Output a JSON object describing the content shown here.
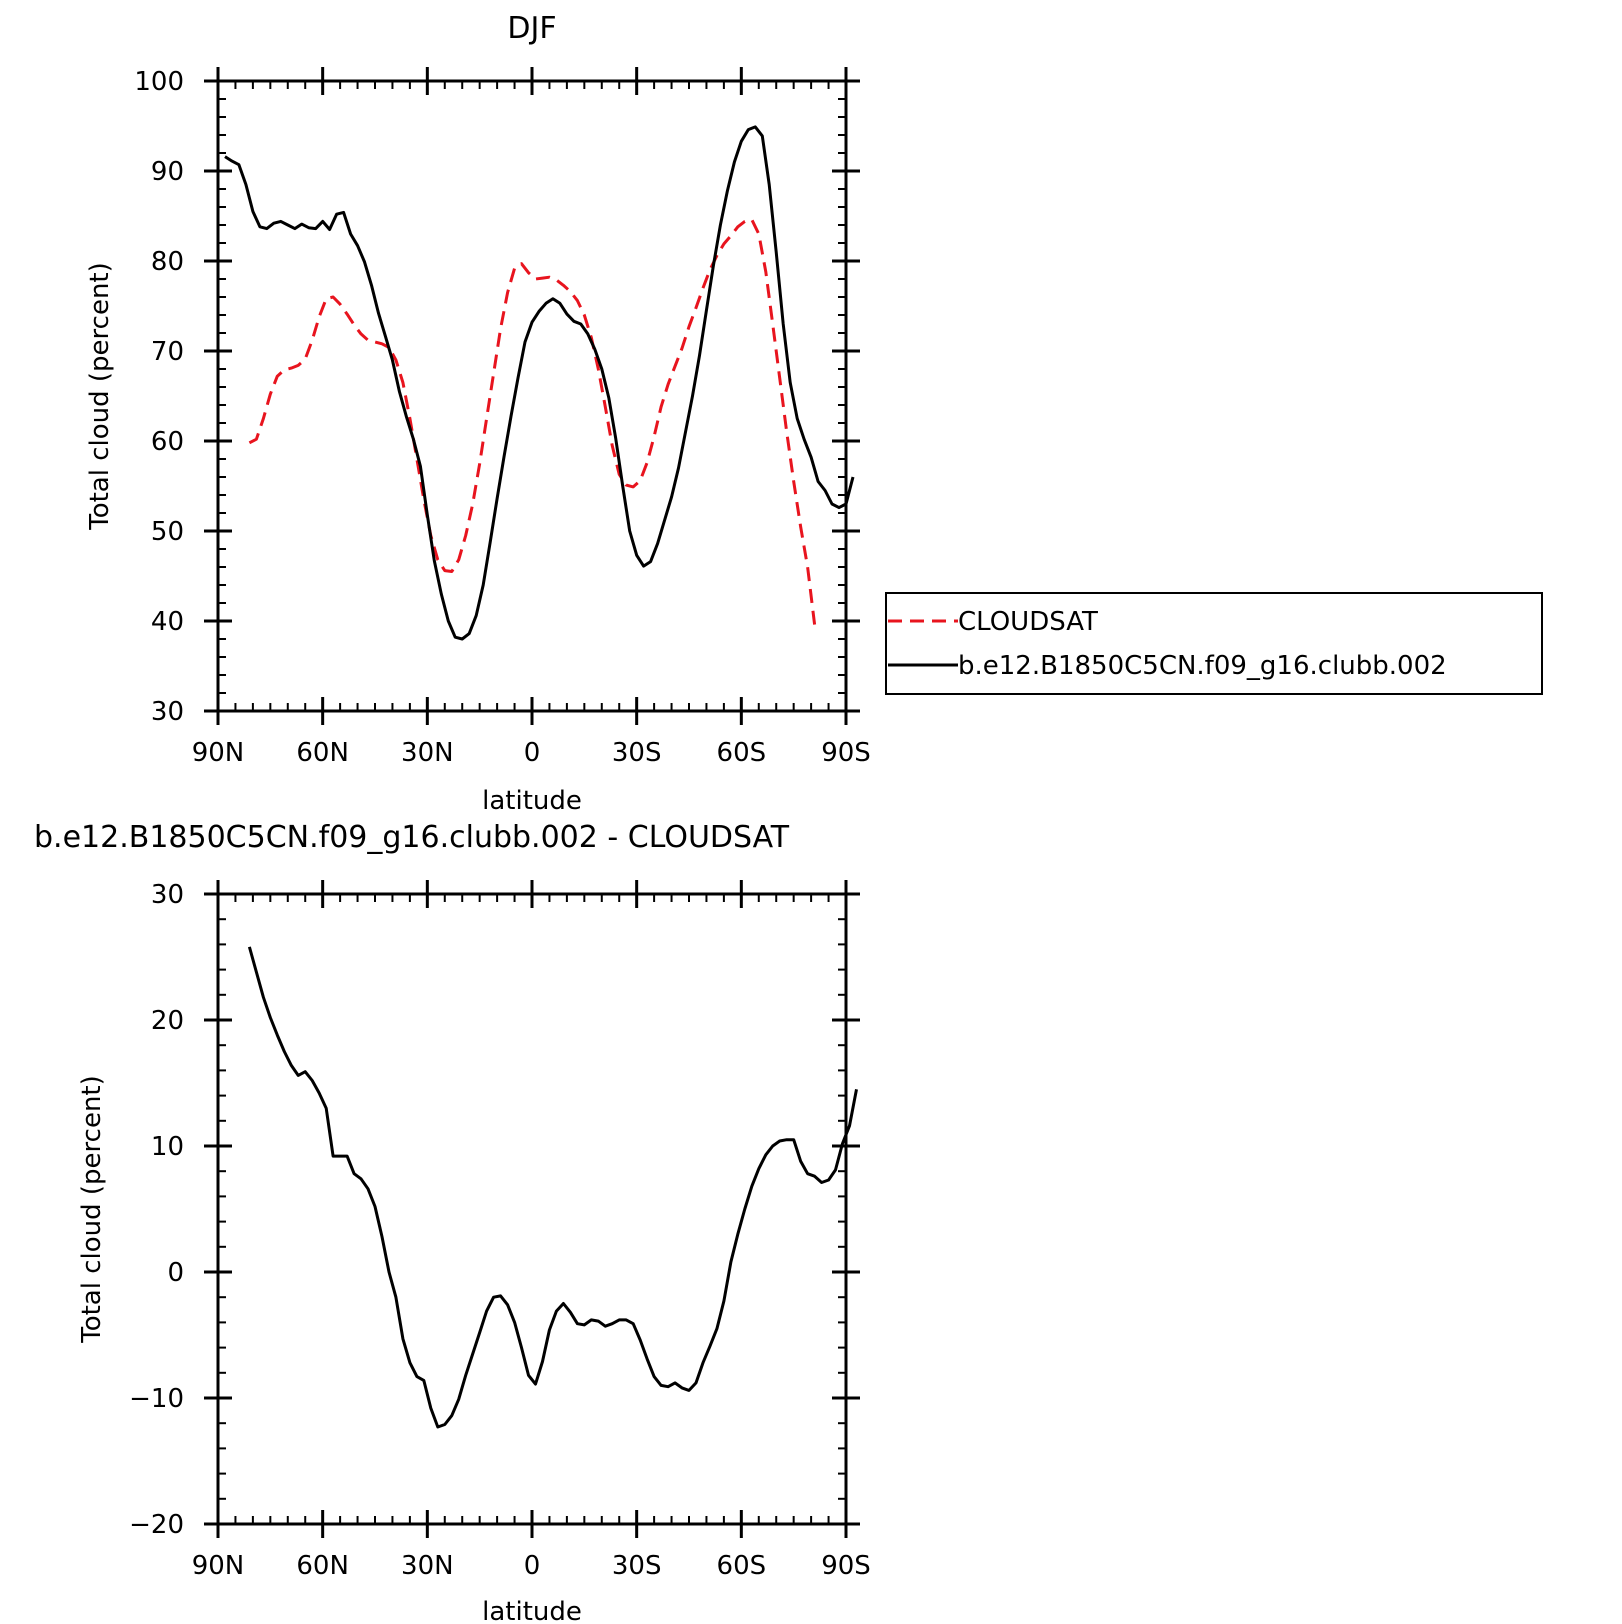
{
  "chart_data": [
    {
      "type": "line",
      "title": "DJF",
      "xlabel": "latitude",
      "ylabel": "Total cloud (percent)",
      "xlim": [
        90,
        -90
      ],
      "ylim": [
        30,
        100
      ],
      "x_tick_values": [
        90,
        60,
        30,
        0,
        -30,
        -60,
        -90
      ],
      "x_tick_labels": [
        "90N",
        "60N",
        "30N",
        "0",
        "30S",
        "60S",
        "90S"
      ],
      "y_tick_values": [
        30,
        40,
        50,
        60,
        70,
        80,
        90,
        100
      ],
      "y_tick_labels": [
        "30",
        "40",
        "50",
        "60",
        "70",
        "80",
        "90",
        "100"
      ],
      "legend_position": "right",
      "series": [
        {
          "name": "CLOUDSAT",
          "color": "#e8141e",
          "dash": "dashed",
          "points": [
            [
              81,
              59.8
            ],
            [
              79,
              60.2
            ],
            [
              77,
              62.5
            ],
            [
              75,
              65.2
            ],
            [
              73,
              67.2
            ],
            [
              71,
              67.9
            ],
            [
              69,
              68.1
            ],
            [
              67,
              68.4
            ],
            [
              65,
              69.1
            ],
            [
              63,
              71.2
            ],
            [
              61,
              73.8
            ],
            [
              59,
              75.8
            ],
            [
              57,
              76.0
            ],
            [
              55,
              75.2
            ],
            [
              53,
              74.1
            ],
            [
              51,
              72.9
            ],
            [
              49,
              71.9
            ],
            [
              47,
              71.2
            ],
            [
              45,
              71.0
            ],
            [
              43,
              70.8
            ],
            [
              41,
              70.4
            ],
            [
              39,
              69.0
            ],
            [
              37,
              66.5
            ],
            [
              35,
              62.5
            ],
            [
              33,
              58.0
            ],
            [
              31,
              53.5
            ],
            [
              29,
              49.5
            ],
            [
              27,
              46.8
            ],
            [
              25,
              45.6
            ],
            [
              23,
              45.5
            ],
            [
              21,
              46.8
            ],
            [
              19,
              49.5
            ],
            [
              17,
              53.0
            ],
            [
              15,
              57.5
            ],
            [
              13,
              62.5
            ],
            [
              11,
              67.5
            ],
            [
              9,
              72.5
            ],
            [
              7,
              76.5
            ],
            [
              5,
              79.2
            ],
            [
              3,
              79.7
            ],
            [
              1,
              78.7
            ],
            [
              -1,
              78.0
            ],
            [
              -3,
              78.1
            ],
            [
              -5,
              78.2
            ],
            [
              -7,
              77.9
            ],
            [
              -9,
              77.3
            ],
            [
              -11,
              76.6
            ],
            [
              -13,
              75.6
            ],
            [
              -15,
              74.0
            ],
            [
              -17,
              71.5
            ],
            [
              -19,
              68.0
            ],
            [
              -21,
              63.8
            ],
            [
              -23,
              59.5
            ],
            [
              -25,
              56.3
            ],
            [
              -27,
              55.1
            ],
            [
              -29,
              54.9
            ],
            [
              -31,
              55.6
            ],
            [
              -33,
              57.6
            ],
            [
              -35,
              60.5
            ],
            [
              -37,
              63.8
            ],
            [
              -39,
              66.3
            ],
            [
              -41,
              68.3
            ],
            [
              -43,
              70.3
            ],
            [
              -45,
              72.7
            ],
            [
              -47,
              74.8
            ],
            [
              -49,
              77.0
            ],
            [
              -51,
              79.0
            ],
            [
              -53,
              80.6
            ],
            [
              -55,
              81.9
            ],
            [
              -57,
              82.8
            ],
            [
              -59,
              83.8
            ],
            [
              -61,
              84.4
            ],
            [
              -63,
              84.6
            ],
            [
              -65,
              83.0
            ],
            [
              -67,
              78.8
            ],
            [
              -69,
              73.0
            ],
            [
              -71,
              67.0
            ],
            [
              -73,
              61.0
            ],
            [
              -75,
              55.5
            ],
            [
              -77,
              50.5
            ],
            [
              -79,
              46.0
            ],
            [
              -81,
              39.6
            ]
          ]
        },
        {
          "name": "b.e12.B1850C5CN.f09_g16.clubb.002",
          "color": "#000000",
          "dash": "solid",
          "points": [
            [
              88,
              91.6
            ],
            [
              86,
              91.1
            ],
            [
              84,
              90.7
            ],
            [
              82,
              88.5
            ],
            [
              80,
              85.5
            ],
            [
              78,
              83.8
            ],
            [
              76,
              83.6
            ],
            [
              74,
              84.2
            ],
            [
              72,
              84.4
            ],
            [
              70,
              84.0
            ],
            [
              68,
              83.6
            ],
            [
              66,
              84.1
            ],
            [
              64,
              83.7
            ],
            [
              62,
              83.6
            ],
            [
              60,
              84.4
            ],
            [
              58,
              83.5
            ],
            [
              56,
              85.2
            ],
            [
              54,
              85.4
            ],
            [
              52,
              83.0
            ],
            [
              50,
              81.7
            ],
            [
              48,
              79.9
            ],
            [
              46,
              77.3
            ],
            [
              44,
              74.2
            ],
            [
              42,
              71.6
            ],
            [
              40,
              69.0
            ],
            [
              38,
              65.5
            ],
            [
              36,
              62.7
            ],
            [
              34,
              60.2
            ],
            [
              32,
              57.2
            ],
            [
              30,
              51.8
            ],
            [
              28,
              46.7
            ],
            [
              26,
              43.0
            ],
            [
              24,
              40.0
            ],
            [
              22,
              38.2
            ],
            [
              20,
              38.0
            ],
            [
              18,
              38.6
            ],
            [
              16,
              40.6
            ],
            [
              14,
              44.0
            ],
            [
              12,
              48.7
            ],
            [
              10,
              53.6
            ],
            [
              8,
              58.3
            ],
            [
              6,
              62.8
            ],
            [
              4,
              67.0
            ],
            [
              2,
              71.0
            ],
            [
              0,
              73.2
            ],
            [
              -2,
              74.4
            ],
            [
              -4,
              75.3
            ],
            [
              -6,
              75.8
            ],
            [
              -8,
              75.3
            ],
            [
              -10,
              74.1
            ],
            [
              -12,
              73.3
            ],
            [
              -14,
              73.0
            ],
            [
              -16,
              71.9
            ],
            [
              -18,
              70.2
            ],
            [
              -20,
              68.0
            ],
            [
              -22,
              64.8
            ],
            [
              -24,
              60.3
            ],
            [
              -26,
              55.0
            ],
            [
              -28,
              50.0
            ],
            [
              -30,
              47.3
            ],
            [
              -32,
              46.1
            ],
            [
              -34,
              46.6
            ],
            [
              -36,
              48.6
            ],
            [
              -38,
              51.2
            ],
            [
              -40,
              53.8
            ],
            [
              -42,
              57.0
            ],
            [
              -44,
              61.0
            ],
            [
              -46,
              65.0
            ],
            [
              -48,
              69.5
            ],
            [
              -50,
              74.5
            ],
            [
              -52,
              79.5
            ],
            [
              -54,
              84.0
            ],
            [
              -56,
              87.8
            ],
            [
              -58,
              91.0
            ],
            [
              -60,
              93.3
            ],
            [
              -62,
              94.6
            ],
            [
              -64,
              94.9
            ],
            [
              -66,
              93.9
            ],
            [
              -68,
              88.5
            ],
            [
              -70,
              81.0
            ],
            [
              -72,
              73.0
            ],
            [
              -74,
              66.5
            ],
            [
              -76,
              62.5
            ],
            [
              -78,
              60.2
            ],
            [
              -80,
              58.2
            ],
            [
              -82,
              55.5
            ],
            [
              -84,
              54.5
            ],
            [
              -86,
              53.0
            ],
            [
              -88,
              52.6
            ],
            [
              -90,
              53.0
            ],
            [
              -92,
              56.0
            ]
          ]
        }
      ]
    },
    {
      "type": "line",
      "title": "b.e12.B1850C5CN.f09_g16.clubb.002 - CLOUDSAT",
      "xlabel": "latitude",
      "ylabel": "Total cloud (percent)",
      "xlim": [
        90,
        -90
      ],
      "ylim": [
        -20,
        30
      ],
      "x_tick_values": [
        90,
        60,
        30,
        0,
        -30,
        -60,
        -90
      ],
      "x_tick_labels": [
        "90N",
        "60N",
        "30N",
        "0",
        "30S",
        "60S",
        "90S"
      ],
      "y_tick_values": [
        -20,
        -10,
        0,
        10,
        20,
        30
      ],
      "y_tick_labels": [
        "−20",
        "−10",
        "0",
        "10",
        "20",
        "30"
      ],
      "series": [
        {
          "color": "#000000",
          "dash": "solid",
          "points": [
            [
              81,
              25.8
            ],
            [
              79,
              23.8
            ],
            [
              77,
              21.8
            ],
            [
              75,
              20.2
            ],
            [
              73,
              18.8
            ],
            [
              71,
              17.5
            ],
            [
              69,
              16.4
            ],
            [
              67,
              15.6
            ],
            [
              65,
              15.9
            ],
            [
              63,
              15.2
            ],
            [
              61,
              14.2
            ],
            [
              59,
              13.0
            ],
            [
              57,
              9.2
            ],
            [
              55,
              9.2
            ],
            [
              53,
              9.2
            ],
            [
              51,
              7.8
            ],
            [
              49,
              7.4
            ],
            [
              47,
              6.6
            ],
            [
              45,
              5.2
            ],
            [
              43,
              2.8
            ],
            [
              41,
              0.0
            ],
            [
              39,
              -2.0
            ],
            [
              37,
              -5.3
            ],
            [
              35,
              -7.2
            ],
            [
              33,
              -8.3
            ],
            [
              31,
              -8.6
            ],
            [
              29,
              -10.8
            ],
            [
              27,
              -12.3
            ],
            [
              25,
              -12.1
            ],
            [
              23,
              -11.4
            ],
            [
              21,
              -10.1
            ],
            [
              19,
              -8.2
            ],
            [
              17,
              -6.5
            ],
            [
              15,
              -4.8
            ],
            [
              13,
              -3.1
            ],
            [
              11,
              -2.0
            ],
            [
              9,
              -1.9
            ],
            [
              7,
              -2.6
            ],
            [
              5,
              -4.0
            ],
            [
              3,
              -6.0
            ],
            [
              1,
              -8.2
            ],
            [
              -1,
              -8.9
            ],
            [
              -3,
              -7.1
            ],
            [
              -5,
              -4.6
            ],
            [
              -7,
              -3.1
            ],
            [
              -9,
              -2.5
            ],
            [
              -11,
              -3.2
            ],
            [
              -13,
              -4.1
            ],
            [
              -15,
              -4.2
            ],
            [
              -17,
              -3.8
            ],
            [
              -19,
              -3.9
            ],
            [
              -21,
              -4.3
            ],
            [
              -23,
              -4.1
            ],
            [
              -25,
              -3.8
            ],
            [
              -27,
              -3.8
            ],
            [
              -29,
              -4.1
            ],
            [
              -31,
              -5.4
            ],
            [
              -33,
              -6.9
            ],
            [
              -35,
              -8.3
            ],
            [
              -37,
              -9.0
            ],
            [
              -39,
              -9.1
            ],
            [
              -41,
              -8.8
            ],
            [
              -43,
              -9.2
            ],
            [
              -45,
              -9.4
            ],
            [
              -47,
              -8.8
            ],
            [
              -49,
              -7.2
            ],
            [
              -51,
              -5.9
            ],
            [
              -53,
              -4.5
            ],
            [
              -55,
              -2.3
            ],
            [
              -57,
              0.8
            ],
            [
              -59,
              3.0
            ],
            [
              -61,
              5.0
            ],
            [
              -63,
              6.8
            ],
            [
              -65,
              8.2
            ],
            [
              -67,
              9.3
            ],
            [
              -69,
              10.0
            ],
            [
              -71,
              10.4
            ],
            [
              -73,
              10.5
            ],
            [
              -75,
              10.5
            ],
            [
              -77,
              8.8
            ],
            [
              -79,
              7.8
            ],
            [
              -81,
              7.6
            ],
            [
              -83,
              7.1
            ],
            [
              -85,
              7.3
            ],
            [
              -87,
              8.1
            ],
            [
              -89,
              10.2
            ],
            [
              -91,
              11.6
            ],
            [
              -93,
              14.5
            ]
          ]
        }
      ]
    }
  ]
}
